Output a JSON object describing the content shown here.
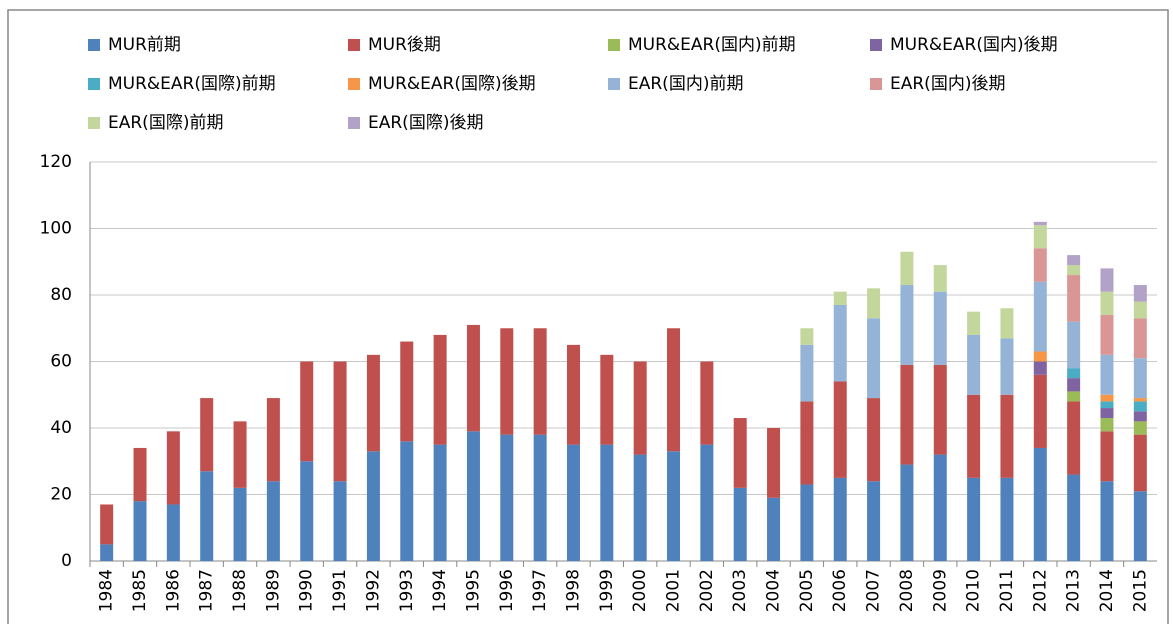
{
  "chart_data": {
    "type": "stacked_bar",
    "categories": [
      "1984",
      "1985",
      "1986",
      "1987",
      "1988",
      "1989",
      "1990",
      "1991",
      "1992",
      "1993",
      "1994",
      "1995",
      "1996",
      "1997",
      "1998",
      "1999",
      "2000",
      "2001",
      "2002",
      "2003",
      "2004",
      "2005",
      "2006",
      "2007",
      "2008",
      "2009",
      "2010",
      "2011",
      "2012",
      "2013",
      "2014",
      "2015"
    ],
    "series": [
      {
        "name": "MUR前期",
        "color": "#4f81bd",
        "values": [
          5,
          18,
          17,
          27,
          22,
          24,
          30,
          24,
          33,
          36,
          35,
          39,
          38,
          38,
          35,
          35,
          32,
          33,
          35,
          22,
          19,
          23,
          25,
          24,
          29,
          32,
          25,
          25,
          34,
          26,
          24,
          21
        ]
      },
      {
        "name": "MUR後期",
        "color": "#c0504d",
        "values": [
          12,
          16,
          22,
          22,
          20,
          25,
          30,
          36,
          29,
          30,
          33,
          32,
          32,
          32,
          30,
          27,
          28,
          37,
          25,
          21,
          21,
          25,
          29,
          25,
          30,
          27,
          25,
          25,
          22,
          22,
          15,
          17
        ]
      },
      {
        "name": "MUR&EAR(国内)前期",
        "color": "#9bbb59",
        "values": [
          0,
          0,
          0,
          0,
          0,
          0,
          0,
          0,
          0,
          0,
          0,
          0,
          0,
          0,
          0,
          0,
          0,
          0,
          0,
          0,
          0,
          0,
          0,
          0,
          0,
          0,
          0,
          0,
          0,
          3,
          4,
          4
        ]
      },
      {
        "name": "MUR&EAR(国内)後期",
        "color": "#8064a2",
        "values": [
          0,
          0,
          0,
          0,
          0,
          0,
          0,
          0,
          0,
          0,
          0,
          0,
          0,
          0,
          0,
          0,
          0,
          0,
          0,
          0,
          0,
          0,
          0,
          0,
          0,
          0,
          0,
          0,
          4,
          4,
          3,
          3
        ]
      },
      {
        "name": "MUR&EAR(国際)前期",
        "color": "#4bacc6",
        "values": [
          0,
          0,
          0,
          0,
          0,
          0,
          0,
          0,
          0,
          0,
          0,
          0,
          0,
          0,
          0,
          0,
          0,
          0,
          0,
          0,
          0,
          0,
          0,
          0,
          0,
          0,
          0,
          0,
          0,
          3,
          2,
          3
        ]
      },
      {
        "name": "MUR&EAR(国際)後期",
        "color": "#f79646",
        "values": [
          0,
          0,
          0,
          0,
          0,
          0,
          0,
          0,
          0,
          0,
          0,
          0,
          0,
          0,
          0,
          0,
          0,
          0,
          0,
          0,
          0,
          0,
          0,
          0,
          0,
          0,
          0,
          0,
          3,
          0,
          2,
          1
        ]
      },
      {
        "name": "EAR(国内)前期",
        "color": "#95b3d7",
        "values": [
          0,
          0,
          0,
          0,
          0,
          0,
          0,
          0,
          0,
          0,
          0,
          0,
          0,
          0,
          0,
          0,
          0,
          0,
          0,
          0,
          0,
          17,
          23,
          24,
          24,
          22,
          18,
          17,
          21,
          14,
          12,
          12
        ]
      },
      {
        "name": "EAR(国内)後期",
        "color": "#d99694",
        "values": [
          0,
          0,
          0,
          0,
          0,
          0,
          0,
          0,
          0,
          0,
          0,
          0,
          0,
          0,
          0,
          0,
          0,
          0,
          0,
          0,
          0,
          0,
          0,
          0,
          0,
          0,
          0,
          0,
          10,
          14,
          12,
          12
        ]
      },
      {
        "name": "EAR(国際)前期",
        "color": "#c3d69b",
        "values": [
          0,
          0,
          0,
          0,
          0,
          0,
          0,
          0,
          0,
          0,
          0,
          0,
          0,
          0,
          0,
          0,
          0,
          0,
          0,
          0,
          0,
          5,
          4,
          9,
          10,
          8,
          7,
          9,
          7,
          3,
          7,
          5
        ]
      },
      {
        "name": "EAR(国際)後期",
        "color": "#b3a2c7",
        "values": [
          0,
          0,
          0,
          0,
          0,
          0,
          0,
          0,
          0,
          0,
          0,
          0,
          0,
          0,
          0,
          0,
          0,
          0,
          0,
          0,
          0,
          0,
          0,
          0,
          0,
          0,
          0,
          0,
          1,
          3,
          7,
          5
        ]
      }
    ],
    "ylim": [
      0,
      120
    ],
    "yticks": [
      0,
      20,
      40,
      60,
      80,
      100,
      120
    ],
    "grid": true
  }
}
